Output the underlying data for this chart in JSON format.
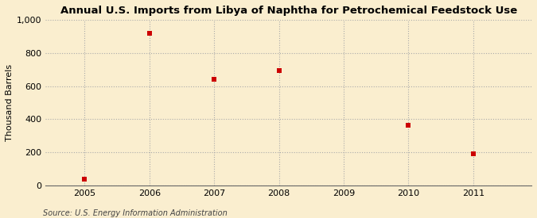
{
  "title": "Annual U.S. Imports from Libya of Naphtha for Petrochemical Feedstock Use",
  "ylabel": "Thousand Barrels",
  "source": "Source: U.S. Energy Information Administration",
  "x": [
    2005,
    2006,
    2007,
    2008,
    2010,
    2011
  ],
  "y": [
    40,
    922,
    643,
    693,
    365,
    192
  ],
  "xlim": [
    2004.4,
    2011.9
  ],
  "ylim": [
    0,
    1000
  ],
  "yticks": [
    0,
    200,
    400,
    600,
    800,
    1000
  ],
  "xticks": [
    2005,
    2006,
    2007,
    2008,
    2009,
    2010,
    2011
  ],
  "marker_color": "#cc0000",
  "marker": "s",
  "marker_size": 4,
  "bg_color": "#faeecf",
  "grid_color": "#aaaaaa",
  "title_fontsize": 9.5,
  "label_fontsize": 8,
  "tick_fontsize": 8,
  "source_fontsize": 7
}
